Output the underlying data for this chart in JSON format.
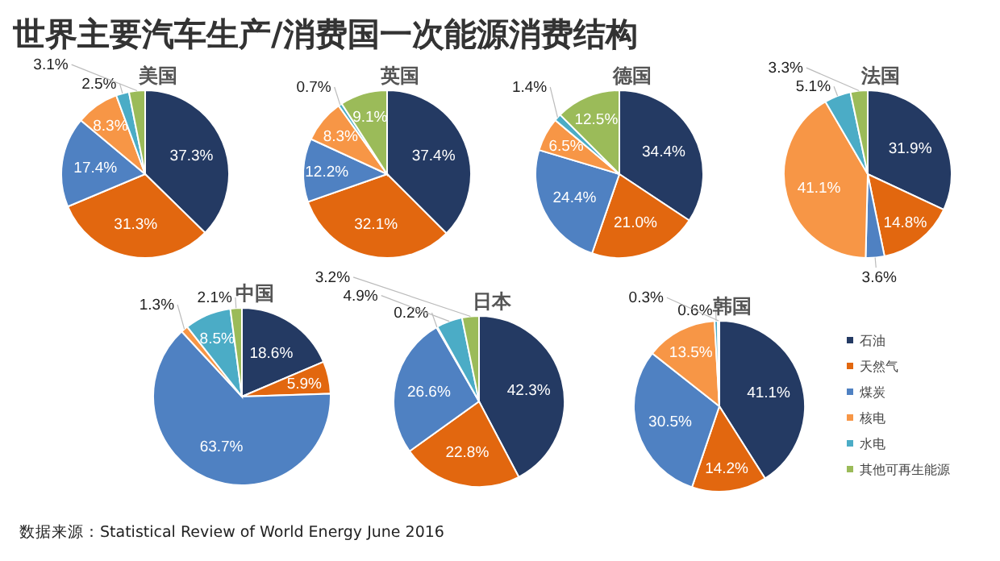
{
  "chart_data": [
    {
      "type": "pie",
      "title": "美国",
      "annotations": [
        "世界主要汽车生产/消费国一次能源消费结构"
      ],
      "categories": [
        null,
        null,
        null,
        null,
        null,
        null
      ],
      "values": [
        37.3,
        31.3,
        17.4,
        8.3,
        2.5,
        3.1
      ],
      "colors": [
        "#243a63",
        "#e2670f",
        "#4f81c2",
        "#f79646",
        "#4bacc6",
        "#9bbb59"
      ],
      "value_labels": [
        "37.3%",
        "31.3%",
        "17.4%",
        "8.3%",
        "2.5%",
        "3.1%"
      ],
      "legend": false
    },
    {
      "type": "pie",
      "title": "英国",
      "categories": [
        null,
        null,
        null,
        null,
        null,
        null
      ],
      "values": [
        37.4,
        32.1,
        12.2,
        8.3,
        0.7,
        9.1
      ],
      "colors": [
        "#243a63",
        "#e2670f",
        "#4f81c2",
        "#f79646",
        "#4bacc6",
        "#9bbb59"
      ],
      "value_labels": [
        "37.4%",
        "32.1%",
        "12.2%",
        "8.3%",
        "0.7%",
        "9.1%"
      ],
      "legend": false
    },
    {
      "type": "pie",
      "title": "德国",
      "categories": [
        null,
        null,
        null,
        null,
        null,
        null
      ],
      "values": [
        34.4,
        21.0,
        24.4,
        6.5,
        1.4,
        12.5
      ],
      "colors": [
        "#243a63",
        "#e2670f",
        "#4f81c2",
        "#f79646",
        "#4bacc6",
        "#9bbb59"
      ],
      "value_labels": [
        "34.4%",
        "21.0%",
        "24.4%",
        "6.5%",
        "1.4%",
        "12.5%"
      ],
      "legend": false
    },
    {
      "type": "pie",
      "title": "法国",
      "categories": [
        null,
        null,
        null,
        null,
        null,
        null
      ],
      "values": [
        31.9,
        14.8,
        3.6,
        41.1,
        5.1,
        3.3
      ],
      "colors": [
        "#243a63",
        "#e2670f",
        "#4f81c2",
        "#f79646",
        "#4bacc6",
        "#9bbb59"
      ],
      "value_labels": [
        "31.9%",
        "14.8%",
        "3.6%",
        "41.1%",
        "5.1%",
        "3.3%"
      ],
      "legend": false
    },
    {
      "type": "pie",
      "title": "中国",
      "categories": [
        null,
        null,
        null,
        null,
        null,
        null
      ],
      "values": [
        18.6,
        5.9,
        63.7,
        1.3,
        8.5,
        2.1
      ],
      "colors": [
        "#243a63",
        "#e2670f",
        "#4f81c2",
        "#f79646",
        "#4bacc6",
        "#9bbb59"
      ],
      "value_labels": [
        "18.6%",
        "5.9%",
        "63.7%",
        "1.3%",
        "8.5%",
        "2.1%"
      ],
      "legend": false
    },
    {
      "type": "pie",
      "title": "日本",
      "categories": [
        null,
        null,
        null,
        null,
        null,
        null
      ],
      "values": [
        42.3,
        22.8,
        26.6,
        0.2,
        4.9,
        3.2
      ],
      "colors": [
        "#243a63",
        "#e2670f",
        "#4f81c2",
        "#f79646",
        "#4bacc6",
        "#9bbb59"
      ],
      "value_labels": [
        "42.3%",
        "22.8%",
        "26.6%",
        "0.2%",
        "4.9%",
        "3.2%"
      ],
      "legend": false
    },
    {
      "type": "pie",
      "title": "韩国",
      "annotations": [
        "数据来源：Statistical Review of World Energy June 2016"
      ],
      "categories": [
        "石油",
        "天然气",
        "煤炭",
        "核电",
        "水电",
        "其他可再生能源"
      ],
      "values": [
        41.1,
        14.2,
        30.5,
        13.5,
        0.6,
        0.3
      ],
      "colors": [
        "#243a63",
        "#e2670f",
        "#4f81c2",
        "#f79646",
        "#4bacc6",
        "#9bbb59"
      ],
      "value_labels": [
        "41.1%",
        "14.2%",
        "30.5%",
        "13.5%",
        "0.6%",
        "0.3%"
      ],
      "legend": "right"
    }
  ]
}
